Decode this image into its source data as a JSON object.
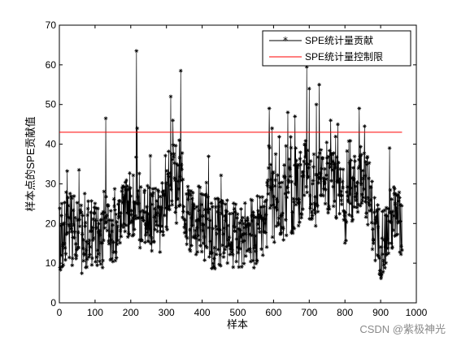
{
  "chart_data": {
    "type": "line",
    "xlabel": "样本",
    "ylabel": "样本点的SPE贡献值",
    "xlim": [
      0,
      1000
    ],
    "ylim": [
      0,
      70
    ],
    "xticks": [
      0,
      100,
      200,
      300,
      400,
      500,
      600,
      700,
      800,
      900,
      1000
    ],
    "yticks": [
      0,
      10,
      20,
      30,
      40,
      50,
      60,
      70
    ],
    "grid": false,
    "legend_position": "top-right",
    "series": [
      {
        "name": "SPE统计量贡献",
        "color": "#000000",
        "marker": "asterisk",
        "n_samples": 960,
        "anchor_x": [
          1,
          20,
          40,
          60,
          80,
          100,
          120,
          130,
          140,
          160,
          180,
          200,
          210,
          216,
          225,
          250,
          280,
          300,
          318,
          330,
          342,
          350,
          370,
          400,
          430,
          460,
          490,
          520,
          550,
          580,
          588,
          600,
          620,
          650,
          670,
          693,
          700,
          720,
          730,
          750,
          780,
          800,
          820,
          835,
          850,
          870,
          885,
          900,
          920,
          935,
          950,
          960
        ],
        "anchor_y": [
          15,
          20,
          18,
          16,
          18,
          17,
          16,
          24,
          20,
          18,
          22,
          24,
          26,
          30,
          22,
          22,
          20,
          24,
          32,
          26,
          35,
          22,
          22,
          20,
          17,
          18,
          16,
          17,
          18,
          22,
          30,
          24,
          24,
          26,
          28,
          35,
          28,
          26,
          35,
          30,
          28,
          24,
          28,
          30,
          34,
          26,
          18,
          15,
          18,
          22,
          20,
          18
        ],
        "peaks": [
          {
            "x": 130,
            "y": 46.5
          },
          {
            "x": 216,
            "y": 63.5
          },
          {
            "x": 218,
            "y": 44
          },
          {
            "x": 312,
            "y": 52
          },
          {
            "x": 318,
            "y": 46
          },
          {
            "x": 340,
            "y": 58.5
          },
          {
            "x": 588,
            "y": 49
          },
          {
            "x": 596,
            "y": 44
          },
          {
            "x": 640,
            "y": 48
          },
          {
            "x": 660,
            "y": 47
          },
          {
            "x": 693,
            "y": 59.5
          },
          {
            "x": 700,
            "y": 54
          },
          {
            "x": 720,
            "y": 50
          },
          {
            "x": 728,
            "y": 55
          },
          {
            "x": 760,
            "y": 46
          },
          {
            "x": 780,
            "y": 45
          },
          {
            "x": 840,
            "y": 49
          },
          {
            "x": 855,
            "y": 44.5
          },
          {
            "x": 925,
            "y": 39
          }
        ]
      },
      {
        "name": "SPE统计量控制限",
        "color": "#ff0000",
        "x": [
          0,
          960
        ],
        "y": [
          43,
          43
        ]
      }
    ]
  },
  "watermark": "CSDN @紫极神光"
}
